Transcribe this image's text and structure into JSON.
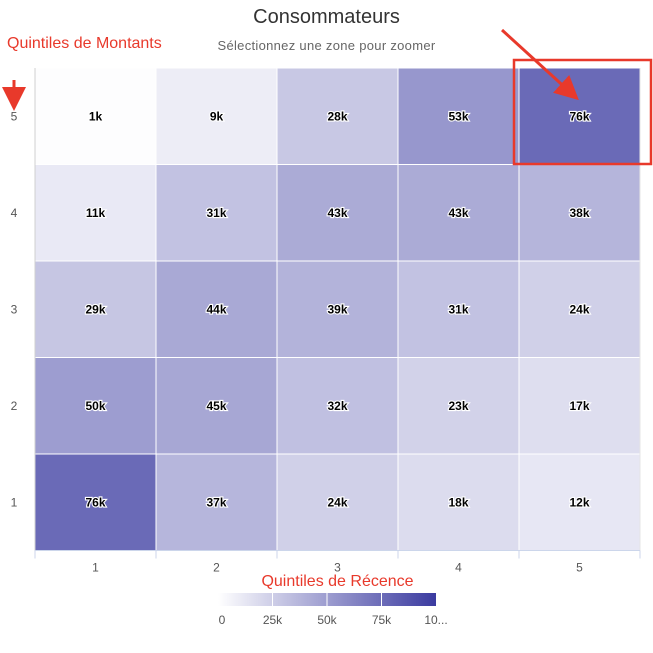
{
  "header": {
    "title": "Consommateurs",
    "subtitle": "Sélectionnez une zone pour zoomer"
  },
  "annotations": {
    "y_axis_label": "Quintiles de Montants",
    "x_axis_label": "Quintiles de Récence",
    "color": "#e8392b",
    "highlight": {
      "x": "5",
      "y": "5"
    }
  },
  "chart_data": {
    "type": "heatmap",
    "title": "Consommateurs",
    "subtitle": "Sélectionnez une zone pour zoomer",
    "x_categories": [
      "1",
      "2",
      "3",
      "4",
      "5"
    ],
    "y_categories": [
      "1",
      "2",
      "3",
      "4",
      "5"
    ],
    "xlabel": "Quintiles de Récence",
    "ylabel": "Quintiles de Montants",
    "values": [
      {
        "y": "5",
        "row": [
          1,
          9,
          28,
          53,
          76
        ]
      },
      {
        "y": "4",
        "row": [
          11,
          31,
          43,
          43,
          38
        ]
      },
      {
        "y": "3",
        "row": [
          29,
          44,
          39,
          31,
          24
        ]
      },
      {
        "y": "2",
        "row": [
          50,
          45,
          32,
          23,
          17
        ]
      },
      {
        "y": "1",
        "row": [
          76,
          37,
          24,
          18,
          12
        ]
      }
    ],
    "value_labels": [
      [
        "1k",
        "9k",
        "28k",
        "53k",
        "76k"
      ],
      [
        "11k",
        "31k",
        "43k",
        "43k",
        "38k"
      ],
      [
        "29k",
        "44k",
        "39k",
        "31k",
        "24k"
      ],
      [
        "50k",
        "45k",
        "32k",
        "23k",
        "17k"
      ],
      [
        "76k",
        "37k",
        "24k",
        "18k",
        "12k"
      ]
    ],
    "value_unit": "k",
    "color_scale": {
      "min": 0,
      "max": 100,
      "min_color": "#ffffff",
      "max_color": "#3b3ba0"
    },
    "legend": {
      "position": "bottom",
      "ticks": [
        "0",
        "25k",
        "50k",
        "75k",
        "10..."
      ]
    },
    "grid": true
  }
}
